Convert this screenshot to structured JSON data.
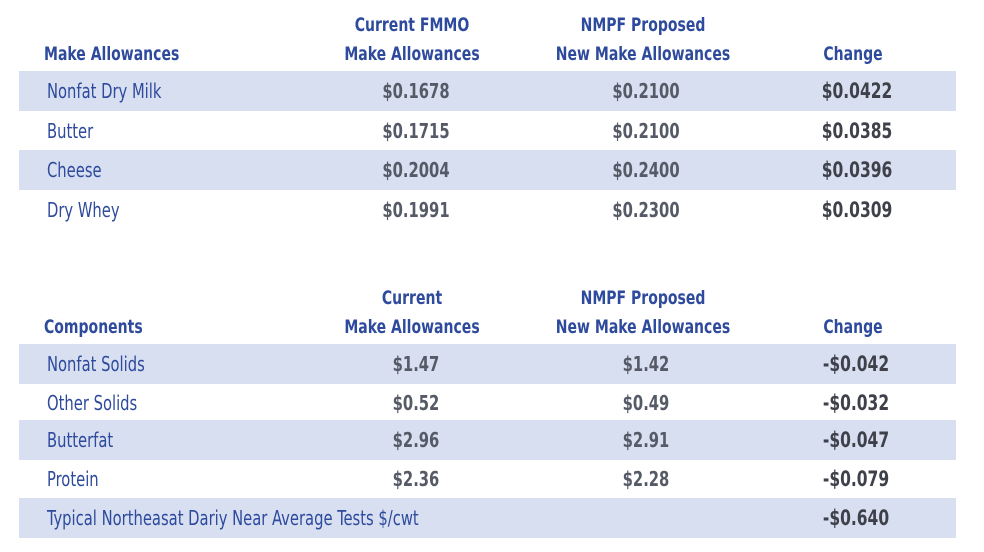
{
  "table1": {
    "headers": {
      "category": "Make Allowances",
      "current": [
        "Current FMMO",
        "Make Allowances"
      ],
      "proposed": [
        "NMPF Proposed",
        "New Make Allowances"
      ],
      "change": "Change"
    },
    "rows": [
      {
        "label": "Nonfat Dry Milk",
        "current": "$0.1678",
        "proposed": "$0.2100",
        "change": "$0.0422"
      },
      {
        "label": "Butter",
        "current": "$0.1715",
        "proposed": "$0.2100",
        "change": "$0.0385"
      },
      {
        "label": "Cheese",
        "current": "$0.2004",
        "proposed": "$0.2400",
        "change": "$0.0396"
      },
      {
        "label": "Dry Whey",
        "current": "$0.1991",
        "proposed": "$0.2300",
        "change": "$0.0309"
      }
    ]
  },
  "table2": {
    "headers": {
      "category": "Components",
      "current": [
        "Current",
        "Make Allowances"
      ],
      "proposed": [
        "NMPF Proposed",
        "New Make Allowances"
      ],
      "change": "Change"
    },
    "rows": [
      {
        "label": "Nonfat Solids",
        "current": "$1.47",
        "proposed": "$1.42",
        "change": "-$0.042"
      },
      {
        "label": "Other Solids",
        "current": "$0.52",
        "proposed": "$0.49",
        "change": "-$0.032"
      },
      {
        "label": "Butterfat",
        "current": "$2.96",
        "proposed": "$2.91",
        "change": "-$0.047"
      },
      {
        "label": "Protein",
        "current": "$2.36",
        "proposed": "$2.28",
        "change": "-$0.079"
      }
    ],
    "total": {
      "label": "Typical Northeasat Dariy Near Average Tests $/cwt",
      "change": "-$0.640"
    }
  }
}
